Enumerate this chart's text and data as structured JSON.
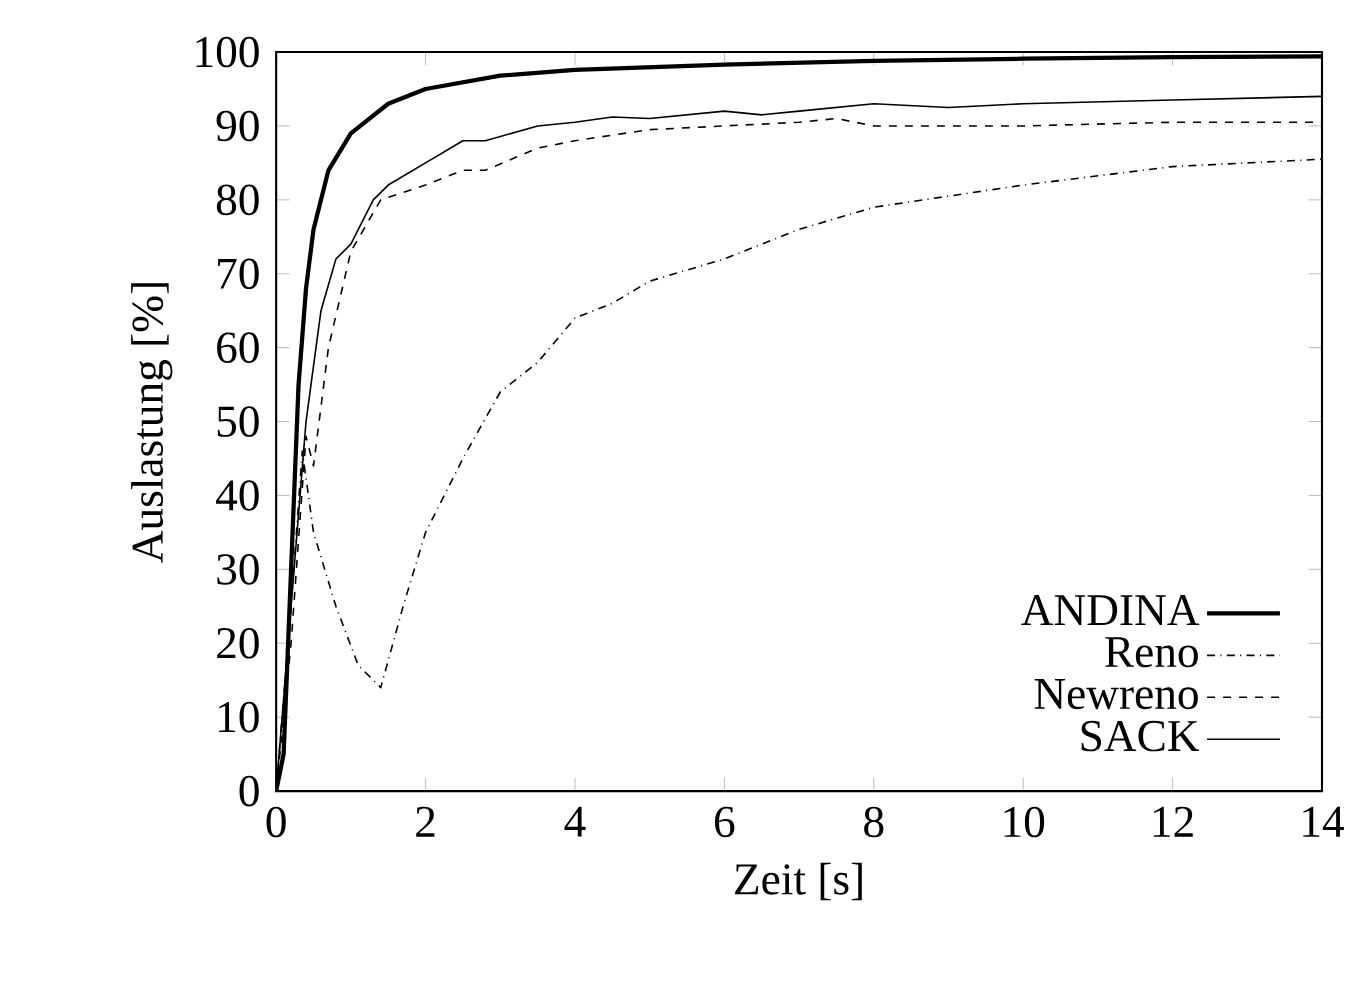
{
  "chart_data": {
    "type": "line",
    "xlabel": "Zeit [s]",
    "ylabel": "Auslastung [%]",
    "xlim": [
      0,
      14
    ],
    "ylim": [
      0,
      100
    ],
    "xticks": [
      0,
      2,
      4,
      6,
      8,
      10,
      12,
      14
    ],
    "yticks": [
      0,
      10,
      20,
      30,
      40,
      50,
      60,
      70,
      80,
      90,
      100
    ],
    "grid": false,
    "legend": "bottom right",
    "marker": "none",
    "series": [
      {
        "name": "ANDINA",
        "color": "#000000",
        "line_style": "solid",
        "x": [
          0,
          0.1,
          0.2,
          0.3,
          0.4,
          0.5,
          0.7,
          1,
          1.5,
          2,
          3,
          4,
          6,
          8,
          10,
          12,
          14
        ],
        "values": [
          0,
          5,
          30,
          55,
          68,
          76,
          84,
          89,
          93,
          95,
          96.8,
          97.6,
          98.3,
          98.8,
          99.1,
          99.3,
          99.4
        ]
      },
      {
        "name": "Reno",
        "color": "#000000",
        "line_style": "dashdotted",
        "x": [
          0,
          0.2,
          0.35,
          0.5,
          0.8,
          1.1,
          1.4,
          1.7,
          2,
          2.5,
          3,
          3.5,
          4,
          4.5,
          5,
          6,
          7,
          8,
          10,
          12,
          14
        ],
        "values": [
          0,
          25,
          46,
          35,
          25,
          17,
          14,
          25,
          35,
          45,
          54,
          58,
          64,
          66,
          69,
          72,
          76,
          79,
          82,
          84.5,
          85.5
        ]
      },
      {
        "name": "Newreno",
        "color": "#000000",
        "line_style": "dashed",
        "x": [
          0,
          0.2,
          0.4,
          0.5,
          0.7,
          1,
          1.4,
          1.7,
          2,
          2.5,
          2.8,
          3.5,
          4,
          5,
          6,
          7,
          7.5,
          8,
          9,
          10,
          12,
          14
        ],
        "values": [
          0,
          20,
          48,
          44,
          60,
          73,
          80,
          81,
          82,
          84,
          84,
          87,
          88,
          89.5,
          90,
          90.5,
          91,
          90,
          90,
          90,
          90.5,
          90.5
        ]
      },
      {
        "name": "SACK",
        "color": "#000000",
        "line_style": "solid",
        "x": [
          0,
          0.2,
          0.4,
          0.6,
          0.8,
          1,
          1.3,
          1.5,
          2,
          2.5,
          2.8,
          3.5,
          4,
          4.5,
          5,
          6,
          6.5,
          7,
          8,
          9,
          10,
          12,
          14
        ],
        "values": [
          0,
          25,
          50,
          65,
          72,
          74,
          80,
          82,
          85,
          88,
          88,
          90,
          90.5,
          91.2,
          91,
          92,
          91.5,
          92,
          93,
          92.5,
          93,
          93.5,
          94
        ]
      }
    ]
  }
}
